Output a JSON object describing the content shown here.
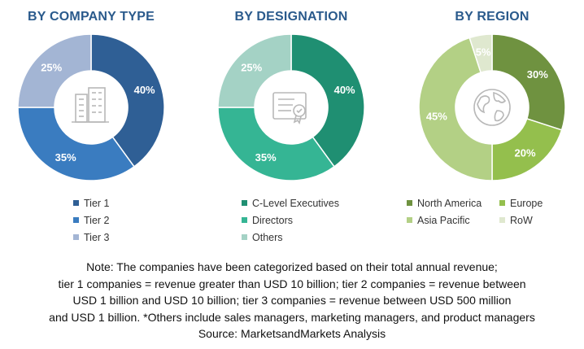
{
  "chart_data": [
    {
      "type": "pie",
      "title": "BY COMPANY TYPE",
      "categories": [
        "Tier 1",
        "Tier 2",
        "Tier 3"
      ],
      "values": [
        40,
        35,
        25
      ],
      "labels": [
        "40%",
        "35%",
        "25%"
      ],
      "colors": [
        "#2f5f95",
        "#3a7cc0",
        "#a3b5d4"
      ],
      "center_icon": "office-buildings-icon"
    },
    {
      "type": "pie",
      "title": "BY DESIGNATION",
      "categories": [
        "C-Level Executives",
        "Directors",
        "Others"
      ],
      "values": [
        40,
        35,
        25
      ],
      "labels": [
        "40%",
        "35%",
        "25%"
      ],
      "colors": [
        "#1f8f72",
        "#35b594",
        "#a4d2c5"
      ],
      "center_icon": "certificate-document-icon"
    },
    {
      "type": "pie",
      "title": "BY REGION",
      "categories": [
        "North America",
        "Europe",
        "Asia Pacific",
        "RoW"
      ],
      "values": [
        30,
        20,
        45,
        5
      ],
      "labels": [
        "30%",
        "20%",
        "45%",
        "5%"
      ],
      "colors": [
        "#6f9240",
        "#94bf4d",
        "#b3d085",
        "#dfe8cf"
      ],
      "center_icon": "globe-icon"
    }
  ],
  "note": {
    "lines": [
      "Note: The companies have been categorized based on their total annual revenue;",
      "tier 1 companies = revenue greater than USD 10 billion; tier 2 companies = revenue between",
      "USD 1 billion and USD 10 billion; tier 3 companies = revenue between USD 500 million",
      "and USD 1 billion. *Others include sales managers, marketing managers, and product managers",
      "Source: MarketsandMarkets Analysis"
    ]
  }
}
